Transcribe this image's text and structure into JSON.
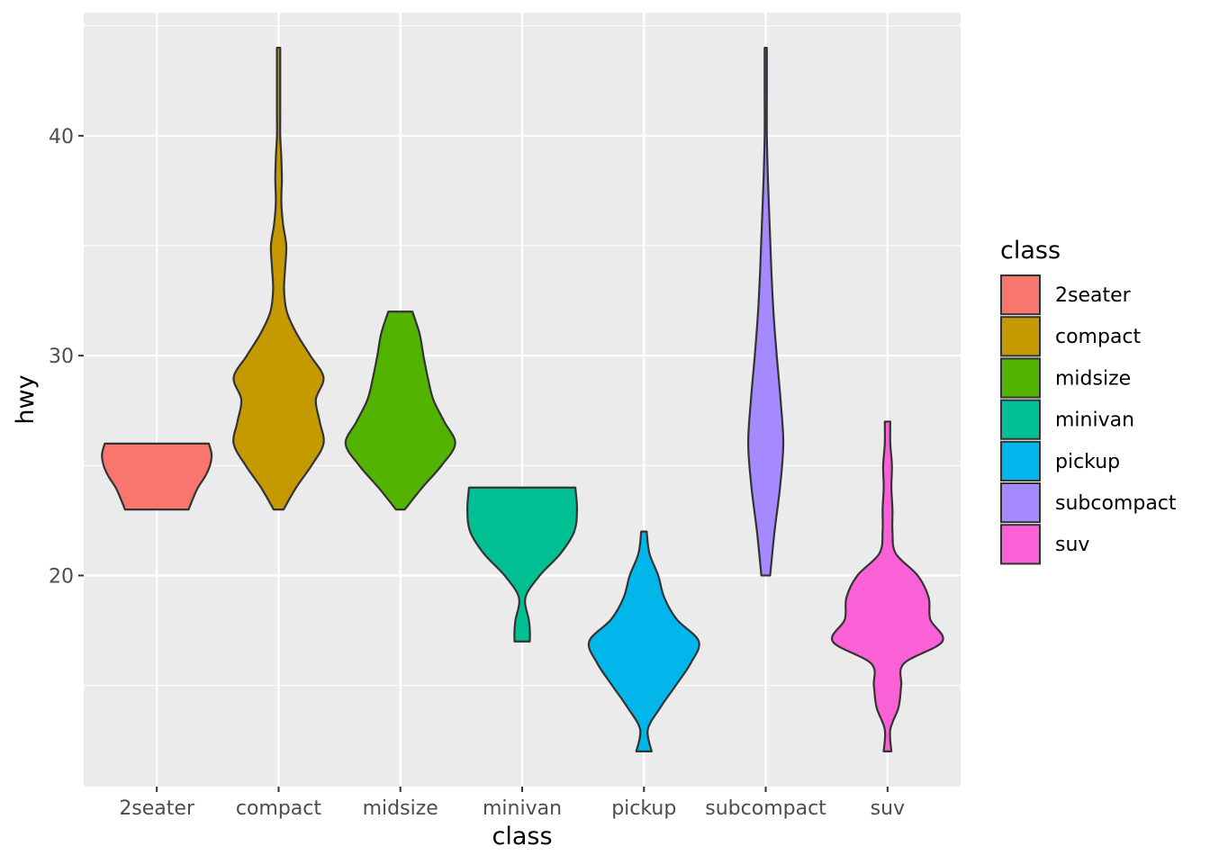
{
  "chart_data": {
    "type": "violin",
    "title": "",
    "xlabel": "class",
    "ylabel": "hwy",
    "ylim": [
      10.4,
      45.6
    ],
    "y_ticks": [
      20,
      30,
      40
    ],
    "y_tick_labels": [
      "20",
      "30",
      "40"
    ],
    "grid": true,
    "legend_title": "class",
    "legend_position": "right",
    "categories": [
      "2seater",
      "compact",
      "midsize",
      "minivan",
      "pickup",
      "subcompact",
      "suv"
    ],
    "colors": [
      "#F8766D",
      "#C49A00",
      "#53B400",
      "#00C094",
      "#00B6EB",
      "#A58AFF",
      "#FB61D7"
    ],
    "violins": [
      {
        "class": "2seater",
        "min": 23,
        "max": 26,
        "profile": [
          [
            23,
            0.58
          ],
          [
            23.5,
            0.66
          ],
          [
            24,
            0.75
          ],
          [
            24.5,
            0.88
          ],
          [
            25,
            0.97
          ],
          [
            25.5,
            1.0
          ],
          [
            26,
            0.95
          ]
        ]
      },
      {
        "class": "compact",
        "min": 23,
        "max": 44,
        "profile": [
          [
            23,
            0.09
          ],
          [
            24,
            0.32
          ],
          [
            25,
            0.6
          ],
          [
            26,
            0.82
          ],
          [
            27,
            0.75
          ],
          [
            28,
            0.68
          ],
          [
            29,
            0.82
          ],
          [
            30,
            0.58
          ],
          [
            31,
            0.33
          ],
          [
            32,
            0.15
          ],
          [
            33,
            0.1
          ],
          [
            34,
            0.12
          ],
          [
            35,
            0.14
          ],
          [
            36,
            0.08
          ],
          [
            37,
            0.05
          ],
          [
            38,
            0.06
          ],
          [
            39,
            0.05
          ],
          [
            40,
            0.03
          ],
          [
            41,
            0.03
          ],
          [
            42,
            0.03
          ],
          [
            43,
            0.03
          ],
          [
            44,
            0.03
          ]
        ]
      },
      {
        "class": "midsize",
        "min": 23,
        "max": 32,
        "profile": [
          [
            23,
            0.08
          ],
          [
            24,
            0.4
          ],
          [
            25,
            0.75
          ],
          [
            26,
            1.0
          ],
          [
            27,
            0.8
          ],
          [
            28,
            0.6
          ],
          [
            29,
            0.5
          ],
          [
            30,
            0.42
          ],
          [
            31,
            0.35
          ],
          [
            32,
            0.22
          ]
        ]
      },
      {
        "class": "minivan",
        "min": 17,
        "max": 24,
        "profile": [
          [
            17,
            0.14
          ],
          [
            17.5,
            0.14
          ],
          [
            18,
            0.12
          ],
          [
            19,
            0.06
          ],
          [
            20,
            0.32
          ],
          [
            21,
            0.7
          ],
          [
            22,
            0.95
          ],
          [
            23,
            1.0
          ],
          [
            24,
            0.97
          ]
        ]
      },
      {
        "class": "pickup",
        "min": 12,
        "max": 22,
        "profile": [
          [
            12,
            0.14
          ],
          [
            13,
            0.07
          ],
          [
            14,
            0.3
          ],
          [
            15,
            0.58
          ],
          [
            16,
            0.85
          ],
          [
            17,
            1.0
          ],
          [
            18,
            0.6
          ],
          [
            19,
            0.37
          ],
          [
            20,
            0.26
          ],
          [
            21,
            0.1
          ],
          [
            22,
            0.05
          ]
        ]
      },
      {
        "class": "subcompact",
        "min": 20,
        "max": 44,
        "profile": [
          [
            20,
            0.08
          ],
          [
            22,
            0.16
          ],
          [
            24,
            0.26
          ],
          [
            26,
            0.32
          ],
          [
            28,
            0.27
          ],
          [
            30,
            0.2
          ],
          [
            32,
            0.14
          ],
          [
            34,
            0.1
          ],
          [
            36,
            0.07
          ],
          [
            38,
            0.04
          ],
          [
            40,
            0.02
          ],
          [
            42,
            0.02
          ],
          [
            44,
            0.02
          ]
        ]
      },
      {
        "class": "suv",
        "min": 12,
        "max": 27,
        "profile": [
          [
            12,
            0.07
          ],
          [
            13,
            0.05
          ],
          [
            14,
            0.2
          ],
          [
            15,
            0.25
          ],
          [
            16,
            0.3
          ],
          [
            17,
            1.0
          ],
          [
            18,
            0.78
          ],
          [
            19,
            0.75
          ],
          [
            20,
            0.55
          ],
          [
            21,
            0.15
          ],
          [
            22,
            0.09
          ],
          [
            23,
            0.09
          ],
          [
            24,
            0.07
          ],
          [
            25,
            0.08
          ],
          [
            26,
            0.05
          ],
          [
            27,
            0.05
          ]
        ]
      }
    ]
  }
}
